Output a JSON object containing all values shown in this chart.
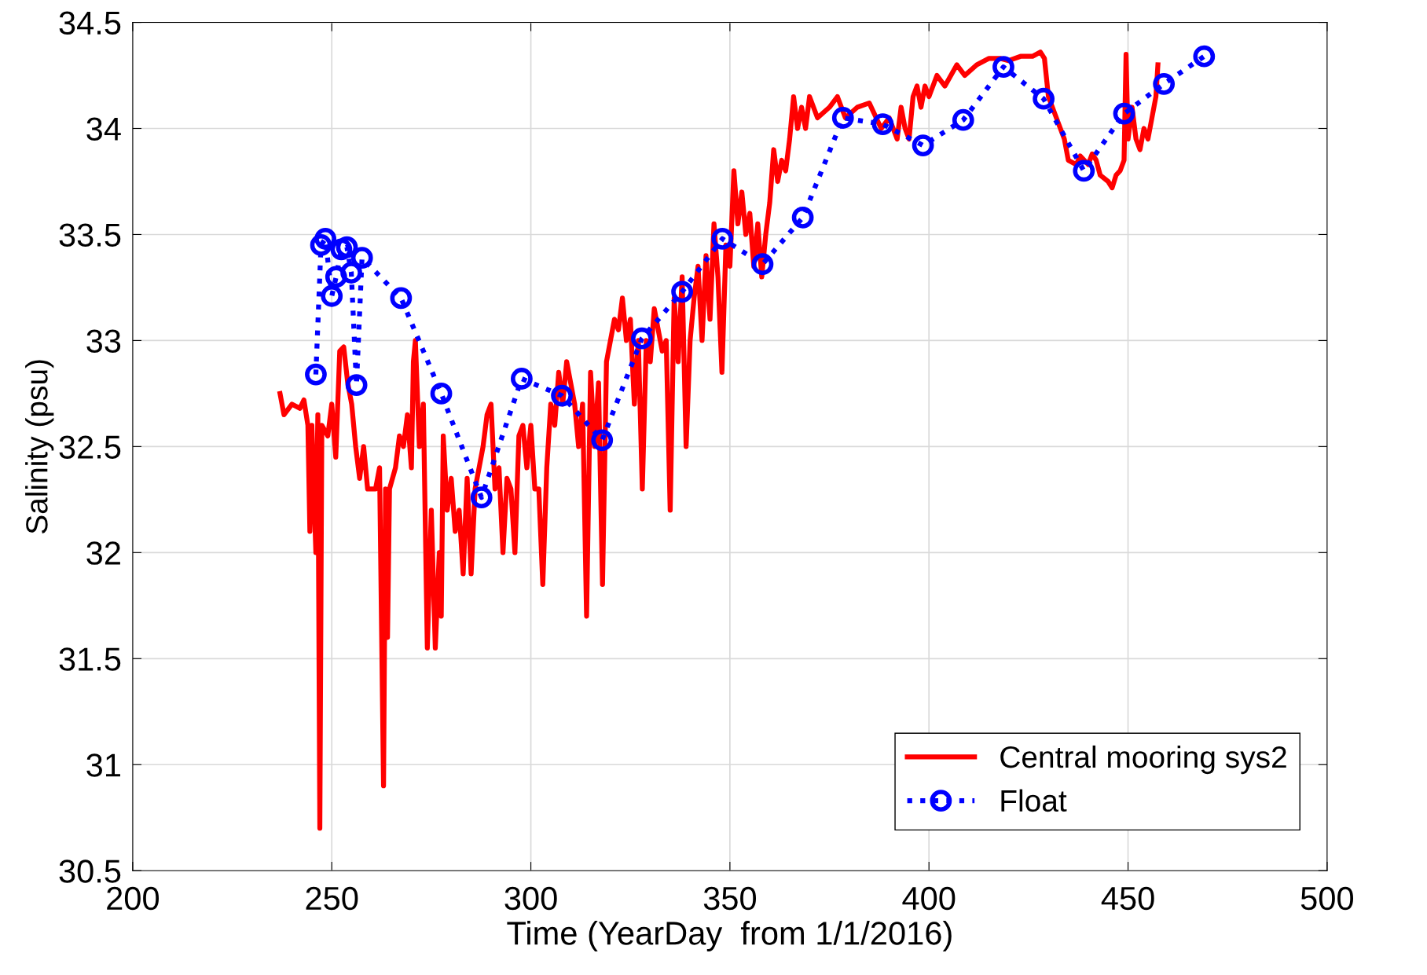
{
  "chart_data": {
    "type": "line",
    "xlabel": "Time (YearDay  from 1/1/2016)",
    "ylabel": "Salinity (psu)",
    "xlim": [
      200,
      500
    ],
    "xticks": [
      200,
      250,
      300,
      350,
      400,
      450,
      500
    ],
    "ylim": [
      30.5,
      34.5
    ],
    "yticks": [
      30.5,
      31,
      31.5,
      32,
      32.5,
      33,
      33.5,
      34,
      34.5
    ],
    "grid": true,
    "legend": "bottom right",
    "series": [
      {
        "name": "Central mooring sys2",
        "color": "#ff0000",
        "marker": "none",
        "line_style": "solid",
        "x": [
          237,
          238,
          240,
          242,
          243,
          244,
          244.5,
          245,
          246,
          246.5,
          247,
          247.5,
          249,
          250,
          251,
          252,
          253,
          254,
          255,
          256,
          257,
          258,
          259,
          261,
          262,
          263,
          263.5,
          264,
          264.5,
          266,
          267,
          268,
          269,
          270,
          270.5,
          271,
          272,
          273,
          274,
          275,
          276,
          277,
          277.5,
          278,
          279,
          280,
          281,
          282,
          283,
          284,
          285,
          286,
          288,
          289,
          290,
          291,
          292,
          293,
          294,
          295,
          296,
          297,
          298,
          299,
          300,
          301,
          302,
          303,
          304,
          305,
          306,
          307,
          308,
          309,
          310,
          311,
          312,
          313,
          314,
          315,
          316,
          317,
          318,
          319,
          320,
          321,
          322,
          323,
          324,
          325,
          326,
          327,
          328,
          329,
          330,
          331,
          332,
          333,
          334,
          335,
          336,
          337,
          338,
          339,
          340,
          341,
          342,
          343,
          344,
          345,
          346,
          347,
          348,
          349,
          350,
          351,
          352,
          353,
          354,
          355,
          356,
          357,
          358,
          359,
          360,
          361,
          362,
          363,
          364,
          365,
          366,
          367,
          368,
          369,
          370,
          372,
          375,
          377,
          379,
          382,
          385,
          388,
          390,
          392,
          393,
          394,
          395,
          396,
          397,
          398,
          399,
          400,
          402,
          404,
          407,
          409,
          412,
          415,
          418,
          420,
          423,
          426,
          428,
          429,
          430,
          432,
          434,
          435,
          437,
          438,
          440,
          441,
          442,
          443,
          445,
          446,
          447,
          448,
          449,
          449.5,
          450,
          451,
          452,
          453,
          454,
          455,
          456,
          457,
          457.5
        ],
        "values": [
          32.75,
          32.65,
          32.7,
          32.68,
          32.72,
          32.6,
          32.1,
          32.6,
          32.0,
          32.65,
          30.7,
          32.6,
          32.55,
          32.7,
          32.45,
          32.95,
          32.97,
          32.8,
          32.7,
          32.5,
          32.35,
          32.5,
          32.3,
          32.3,
          32.4,
          30.9,
          32.3,
          31.6,
          32.3,
          32.4,
          32.55,
          32.5,
          32.65,
          32.4,
          32.9,
          33.0,
          32.5,
          32.7,
          31.55,
          32.2,
          31.55,
          32.0,
          31.7,
          32.55,
          32.2,
          32.35,
          32.1,
          32.2,
          31.9,
          32.35,
          31.9,
          32.3,
          32.5,
          32.65,
          32.7,
          32.3,
          32.4,
          32.0,
          32.35,
          32.3,
          32.0,
          32.55,
          32.6,
          32.4,
          32.6,
          32.3,
          32.3,
          31.85,
          32.4,
          32.7,
          32.6,
          32.85,
          32.7,
          32.9,
          32.8,
          32.7,
          32.5,
          32.7,
          31.7,
          32.85,
          32.5,
          32.8,
          31.85,
          32.9,
          33.0,
          33.1,
          33.05,
          33.2,
          33.0,
          33.1,
          32.7,
          33.0,
          32.3,
          33.0,
          32.9,
          33.15,
          33.05,
          32.95,
          33.0,
          32.2,
          33.2,
          32.9,
          33.3,
          32.5,
          33.0,
          33.2,
          33.35,
          33.0,
          33.4,
          33.1,
          33.55,
          33.3,
          32.85,
          33.45,
          33.35,
          33.8,
          33.55,
          33.7,
          33.5,
          33.6,
          33.35,
          33.55,
          33.3,
          33.5,
          33.65,
          33.9,
          33.75,
          33.85,
          33.8,
          33.95,
          34.15,
          34.0,
          34.1,
          34.0,
          34.15,
          34.05,
          34.1,
          34.15,
          34.05,
          34.1,
          34.12,
          34.0,
          34.05,
          33.95,
          34.1,
          34.0,
          33.95,
          34.15,
          34.2,
          34.1,
          34.2,
          34.15,
          34.25,
          34.2,
          34.3,
          34.25,
          34.3,
          34.33,
          34.33,
          34.32,
          34.34,
          34.34,
          34.36,
          34.33,
          34.15,
          34.05,
          33.95,
          33.85,
          33.83,
          33.87,
          33.83,
          33.88,
          33.85,
          33.78,
          33.75,
          33.72,
          33.78,
          33.8,
          33.85,
          34.35,
          33.95,
          34.1,
          33.95,
          33.9,
          34.0,
          33.95,
          34.05,
          34.15,
          34.3
        ]
      },
      {
        "name": "Float",
        "color": "#0000ff",
        "marker": "circle",
        "line_style": "dotted",
        "x": [
          246,
          247.3,
          248.4,
          250,
          251.1,
          252.4,
          253.8,
          254.9,
          256.2,
          257.6,
          267.4,
          277.5,
          287.6,
          297.7,
          307.8,
          317.9,
          327.9,
          338,
          348.1,
          358.2,
          368.3,
          378.4,
          388.4,
          398.5,
          408.6,
          418.7,
          428.8,
          438.9,
          449,
          459,
          469.1
        ],
        "values": [
          32.84,
          33.45,
          33.48,
          33.21,
          33.3,
          33.43,
          33.44,
          33.32,
          32.79,
          33.39,
          33.2,
          32.75,
          32.26,
          32.82,
          32.74,
          32.53,
          33.01,
          33.23,
          33.48,
          33.36,
          33.58,
          34.05,
          34.02,
          33.92,
          34.04,
          34.29,
          34.14,
          33.8,
          34.07,
          34.21,
          34.34
        ]
      }
    ]
  }
}
